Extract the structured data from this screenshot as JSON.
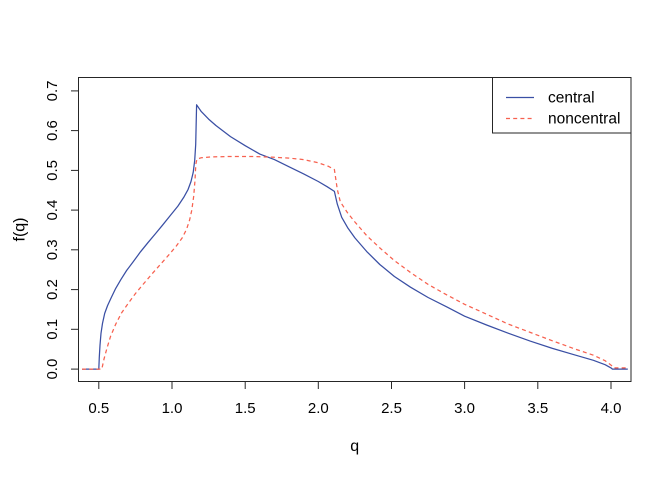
{
  "figure": {
    "background": "#ffffff",
    "axis_color": "#262626",
    "text_color": "#000000"
  },
  "chart_data": {
    "type": "line",
    "title": "",
    "xlabel": "q",
    "ylabel": "f(q)",
    "xlim": [
      0.361,
      4.137
    ],
    "ylim": [
      -0.0313,
      0.7337
    ],
    "xticks": [
      0.5,
      1.0,
      1.5,
      2.0,
      2.5,
      3.0,
      3.5,
      4.0
    ],
    "xtick_labels": [
      "0.5",
      "1.0",
      "1.5",
      "2.0",
      "2.5",
      "3.0",
      "3.5",
      "4.0"
    ],
    "yticks": [
      0.0,
      0.1,
      0.2,
      0.3,
      0.4,
      0.5,
      0.6,
      0.7
    ],
    "ytick_labels": [
      "0.0",
      "0.1",
      "0.2",
      "0.3",
      "0.4",
      "0.5",
      "0.6",
      "0.7"
    ],
    "grid": false,
    "legend": {
      "position": "topright",
      "border": true,
      "items": [
        "central",
        "noncentral"
      ]
    },
    "series": [
      {
        "name": "central",
        "color": "#3A4FA4",
        "line_style": "solid",
        "x": [
          0.385,
          0.5,
          0.503,
          0.508,
          0.515,
          0.525,
          0.54,
          0.56,
          0.585,
          0.615,
          0.65,
          0.69,
          0.735,
          0.785,
          0.835,
          0.885,
          0.935,
          0.985,
          1.04,
          1.08,
          1.11,
          1.13,
          1.145,
          1.155,
          1.162,
          1.168,
          1.2,
          1.25,
          1.3,
          1.4,
          1.5,
          1.6,
          1.7,
          1.8,
          1.9,
          2.0,
          2.06,
          2.11,
          2.13,
          2.16,
          2.2,
          2.25,
          2.33,
          2.42,
          2.52,
          2.63,
          2.75,
          2.88,
          3.0,
          3.15,
          3.3,
          3.45,
          3.6,
          3.75,
          3.88,
          3.96,
          4.0,
          4.01,
          4.115
        ],
        "y": [
          0,
          0,
          0.03,
          0.06,
          0.09,
          0.115,
          0.14,
          0.16,
          0.18,
          0.203,
          0.225,
          0.248,
          0.27,
          0.295,
          0.318,
          0.34,
          0.362,
          0.385,
          0.41,
          0.432,
          0.452,
          0.472,
          0.495,
          0.525,
          0.565,
          0.665,
          0.648,
          0.629,
          0.613,
          0.585,
          0.562,
          0.541,
          0.527,
          0.509,
          0.491,
          0.472,
          0.459,
          0.447,
          0.415,
          0.382,
          0.356,
          0.33,
          0.296,
          0.263,
          0.233,
          0.206,
          0.18,
          0.156,
          0.133,
          0.111,
          0.09,
          0.07,
          0.052,
          0.036,
          0.022,
          0.011,
          0.003,
          0,
          0
        ]
      },
      {
        "name": "noncentral",
        "color": "#F7614F",
        "line_style": "dashed",
        "x": [
          0.385,
          0.52,
          0.535,
          0.555,
          0.58,
          0.615,
          0.655,
          0.7,
          0.75,
          0.8,
          0.86,
          0.92,
          0.98,
          1.03,
          1.07,
          1.1,
          1.12,
          1.135,
          1.148,
          1.157,
          1.163,
          1.17,
          1.2,
          1.27,
          1.4,
          1.55,
          1.7,
          1.8,
          1.9,
          2.0,
          2.07,
          2.11,
          2.13,
          2.15,
          2.2,
          2.25,
          2.33,
          2.42,
          2.52,
          2.63,
          2.75,
          2.88,
          3.0,
          3.15,
          3.3,
          3.45,
          3.6,
          3.75,
          3.88,
          3.96,
          4.0,
          4.02,
          4.115
        ],
        "y": [
          0,
          0,
          0.025,
          0.052,
          0.082,
          0.113,
          0.141,
          0.165,
          0.19,
          0.212,
          0.238,
          0.263,
          0.288,
          0.31,
          0.33,
          0.352,
          0.375,
          0.4,
          0.435,
          0.475,
          0.515,
          0.528,
          0.532,
          0.534,
          0.535,
          0.535,
          0.533,
          0.531,
          0.527,
          0.519,
          0.51,
          0.502,
          0.452,
          0.421,
          0.393,
          0.37,
          0.336,
          0.305,
          0.273,
          0.243,
          0.213,
          0.186,
          0.163,
          0.138,
          0.113,
          0.092,
          0.071,
          0.051,
          0.035,
          0.021,
          0.01,
          0.003,
          0.003
        ]
      }
    ]
  }
}
